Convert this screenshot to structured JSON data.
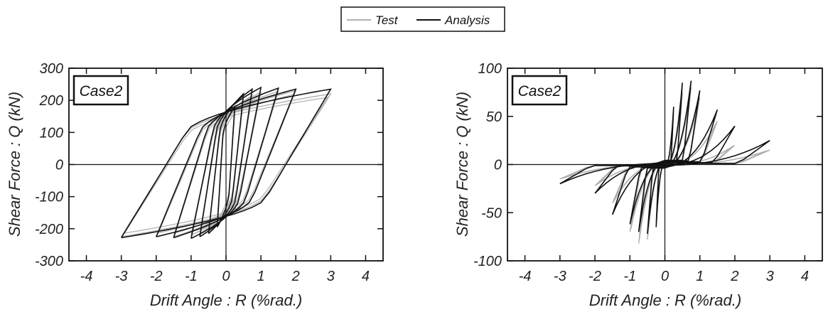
{
  "legend": {
    "items": [
      {
        "label": "Test",
        "color": "#b0b0b0"
      },
      {
        "label": "Analysis",
        "color": "#111111"
      }
    ]
  },
  "chart_data": [
    {
      "type": "line",
      "panel_label": "Case2",
      "xlabel": "Drift Angle : R (%rad.)",
      "ylabel": "Shear Force : Q (kN)",
      "xlim": [
        -4.5,
        4.5
      ],
      "ylim": [
        -300,
        300
      ],
      "xticks": [
        -4,
        -3,
        -2,
        -1,
        0,
        1,
        2,
        3,
        4
      ],
      "yticks": [
        -300,
        -200,
        -100,
        0,
        100,
        200,
        300
      ],
      "peaks": {
        "drift": [
          0.25,
          0.5,
          0.75,
          1.0,
          1.5,
          2.0,
          3.0
        ],
        "test_pos": [
          160,
          200,
          215,
          225,
          228,
          230,
          220
        ],
        "test_neg": [
          -175,
          -205,
          -215,
          -220,
          -225,
          -225,
          -225
        ],
        "analysis_pos": [
          180,
          220,
          235,
          240,
          238,
          235,
          235
        ],
        "analysis_neg": [
          -195,
          -215,
          -225,
          -230,
          -228,
          -225,
          -228
        ]
      },
      "series": [
        {
          "name": "Test",
          "color": "#b0b0b0"
        },
        {
          "name": "Analysis",
          "color": "#111111"
        }
      ]
    },
    {
      "type": "line",
      "panel_label": "Case2",
      "xlabel": "Drift Angle : R (%rad.)",
      "ylabel": "Shear Force : Q (kN)",
      "xlim": [
        -4.5,
        4.5
      ],
      "ylim": [
        -100,
        100
      ],
      "xticks": [
        -4,
        -3,
        -2,
        -1,
        0,
        1,
        2,
        3,
        4
      ],
      "yticks": [
        -100,
        -50,
        0,
        50,
        100
      ],
      "peaks": {
        "drift": [
          0.25,
          0.5,
          0.75,
          1.0,
          1.5,
          2.0,
          3.0
        ],
        "test_pos": [
          55,
          75,
          80,
          70,
          45,
          20,
          15
        ],
        "test_neg": [
          -60,
          -78,
          -82,
          -70,
          -40,
          -22,
          -15
        ],
        "analysis_pos": [
          60,
          85,
          87,
          77,
          57,
          40,
          25
        ],
        "analysis_neg": [
          -65,
          -72,
          -70,
          -62,
          -52,
          -30,
          -20
        ]
      },
      "series": [
        {
          "name": "Test",
          "color": "#b0b0b0"
        },
        {
          "name": "Analysis",
          "color": "#111111"
        }
      ]
    }
  ]
}
